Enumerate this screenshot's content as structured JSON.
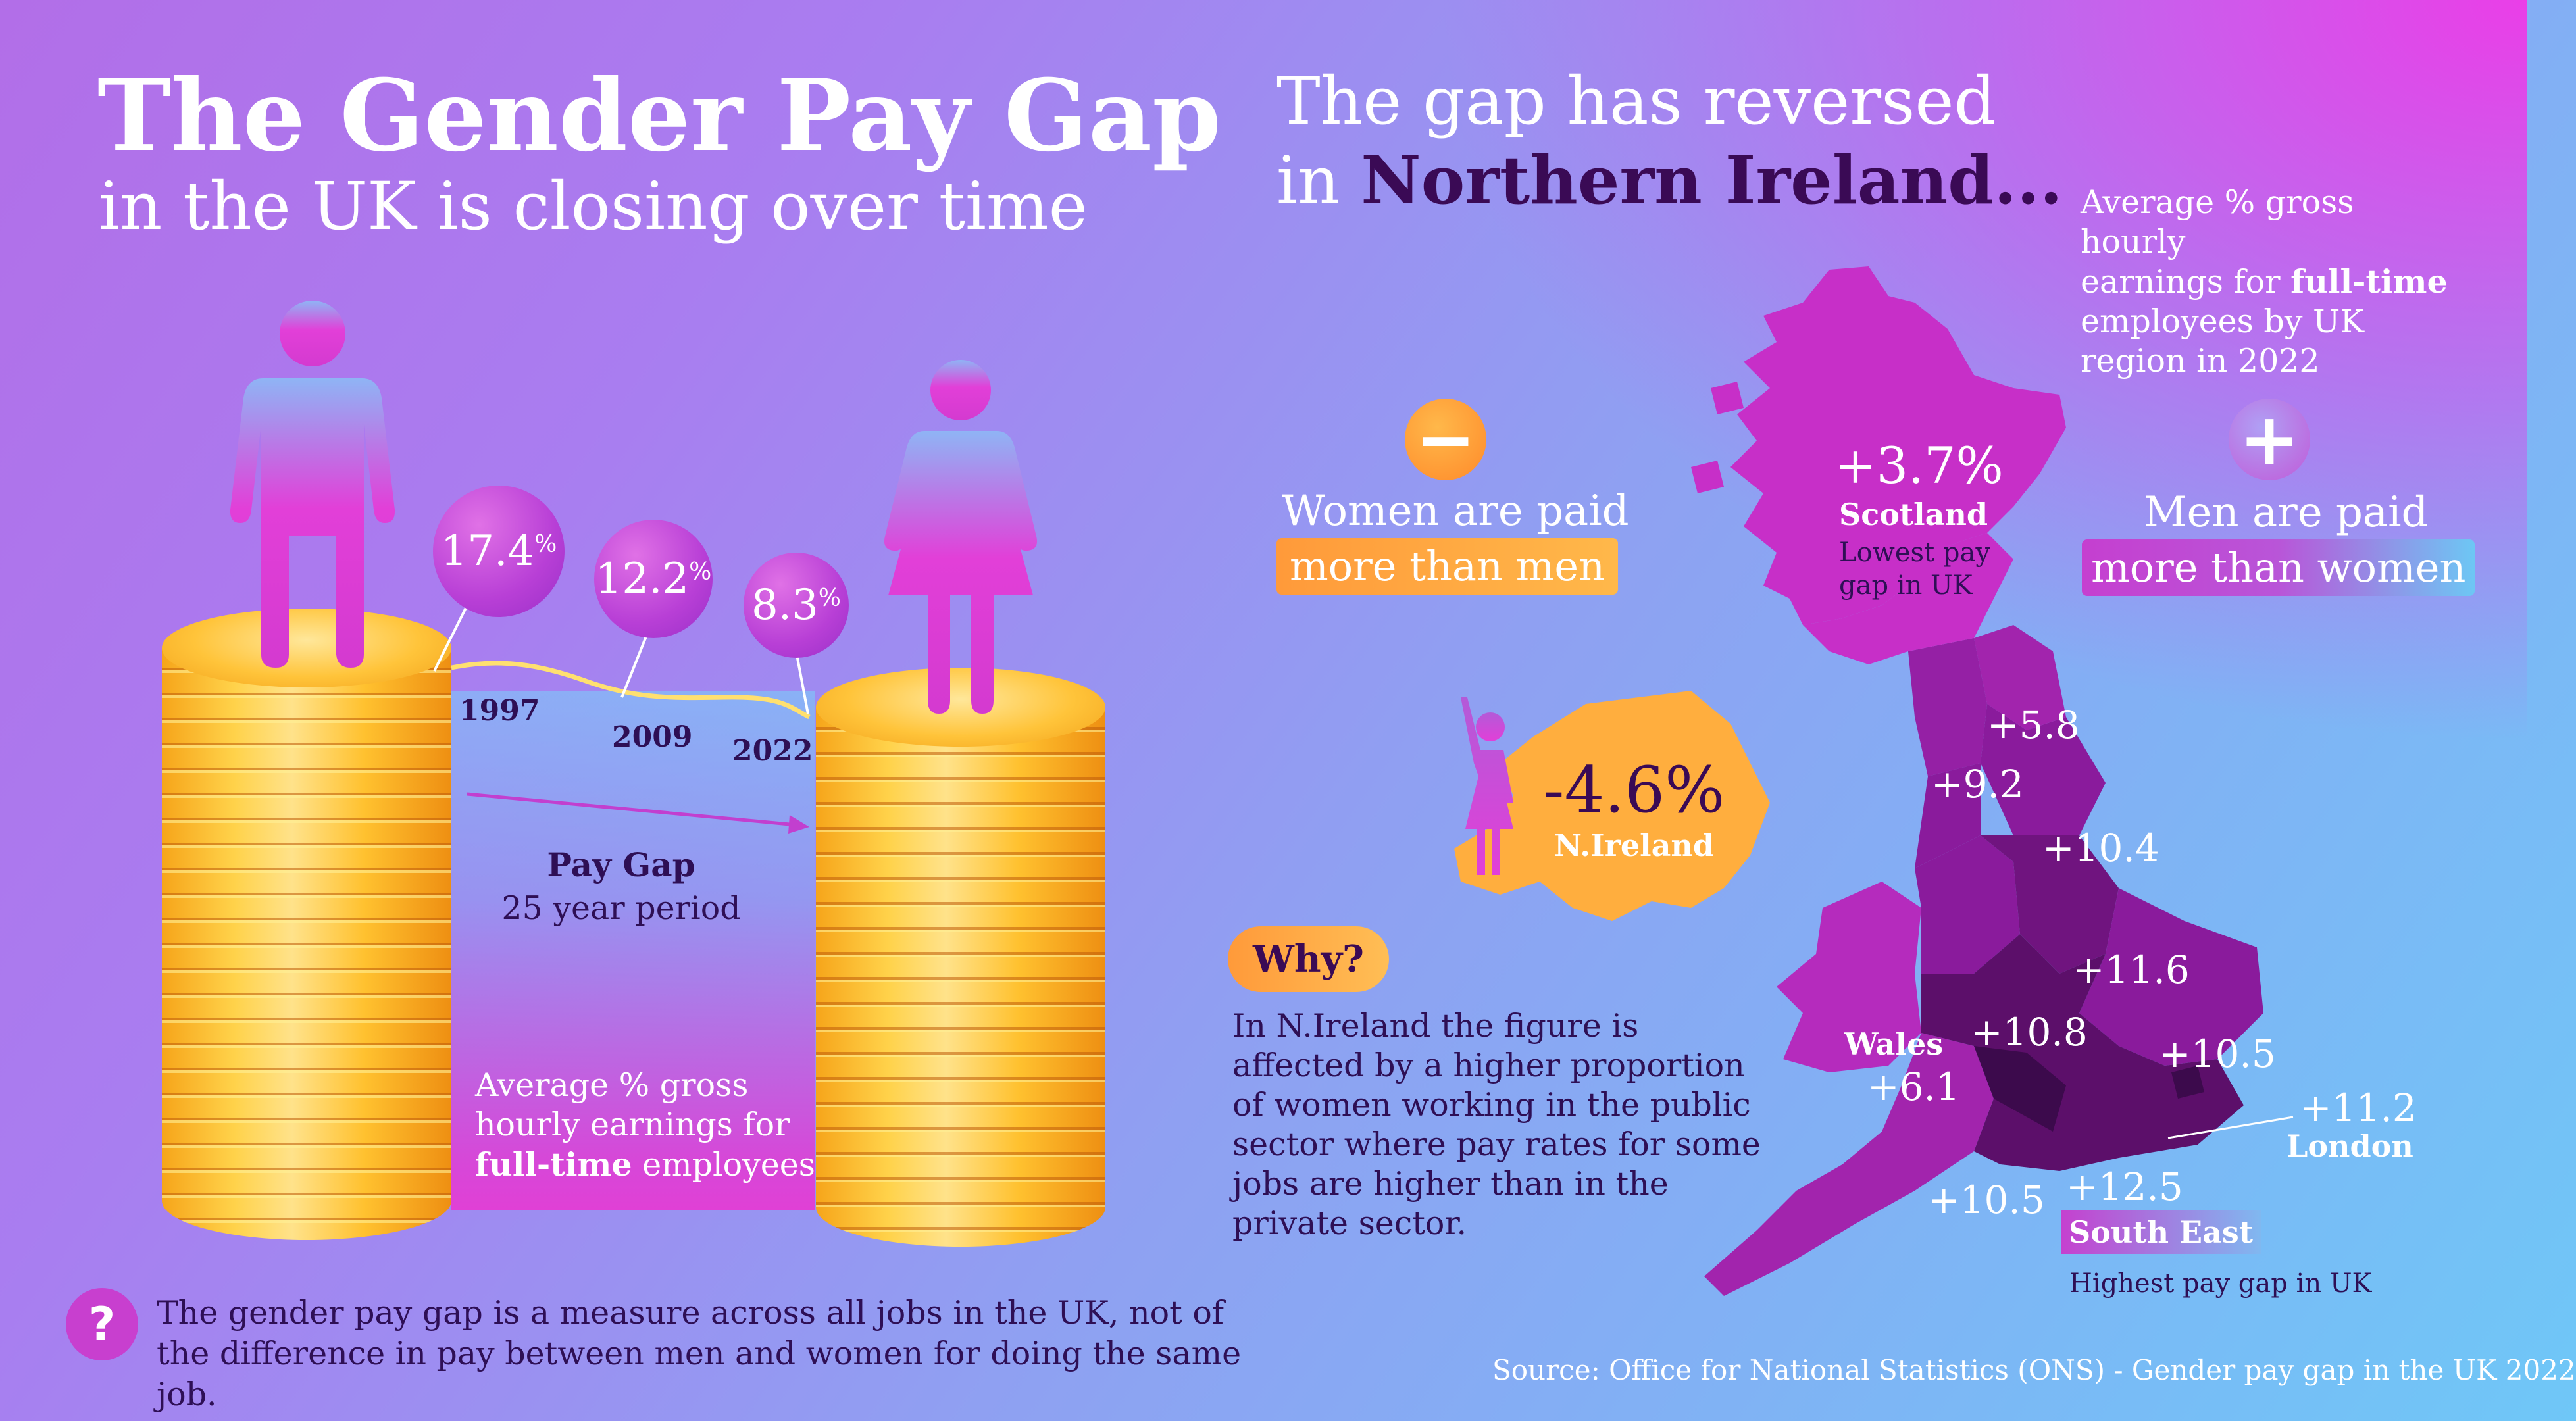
{
  "left": {
    "title": "The Gender Pay Gap",
    "subtitle": "in the UK is closing over time",
    "bubbles": [
      {
        "value": "17.4",
        "unit": "%",
        "year": "1997"
      },
      {
        "value": "12.2",
        "unit": "%",
        "year": "2009"
      },
      {
        "value": "8.3",
        "unit": "%",
        "year": "2022"
      }
    ],
    "pay_gap_label": "Pay Gap",
    "period_label": "25 year period",
    "avg_line1": "Average % gross",
    "avg_line2": "hourly earnings for",
    "avg_bold": "full-time",
    "avg_rest": " employees",
    "note": "The gender pay gap is a measure across all jobs in the UK, not of the difference in pay between men and women for doing the same job.",
    "note_icon": "question-icon"
  },
  "right": {
    "heading_line1": "The gap has reversed",
    "heading_pre": "in ",
    "heading_bold": "Northern Ireland...",
    "avg_line1": "Average % gross hourly",
    "avg_line2_pre": "earnings for ",
    "avg_line2_bold": "full-time",
    "avg_line3": "employees by UK",
    "avg_line4": "region in 2022",
    "women_label": "Women are paid",
    "women_pill": "more than men",
    "men_label": "Men are paid",
    "men_pill": "more than women",
    "minus_icon": "minus-icon",
    "plus_icon": "plus-icon",
    "scotland_value": "+3.7%",
    "scotland_name": "Scotland",
    "scotland_note1": "Lowest pay",
    "scotland_note2": "gap in UK",
    "ni_value": "-4.6%",
    "ni_name": "N.Ireland",
    "why_label": "Why?",
    "why_text": "In N.Ireland the figure is affected by a higher proportion of women working in the public sector where pay rates for some jobs are higher than in the private sector.",
    "regions": {
      "ne": "+5.8",
      "nw": "+9.2",
      "yorks": "+10.4",
      "em": "+11.6",
      "wm": "+10.8",
      "wales_name": "Wales",
      "wales": "+6.1",
      "east": "+10.5",
      "london": "+11.2",
      "london_name": "London",
      "sw": "+10.5",
      "se": "+12.5",
      "se_name": "South East",
      "se_note": "Highest pay gap in UK"
    },
    "source": "Source: Office for National Statistics (ONS) - Gender pay gap in the UK 2022"
  },
  "colors": {
    "accent_purple": "#3a0a55",
    "orange": "#ff9a3a",
    "magenta": "#e23fd8",
    "coin_gold": "#ffc43a"
  }
}
